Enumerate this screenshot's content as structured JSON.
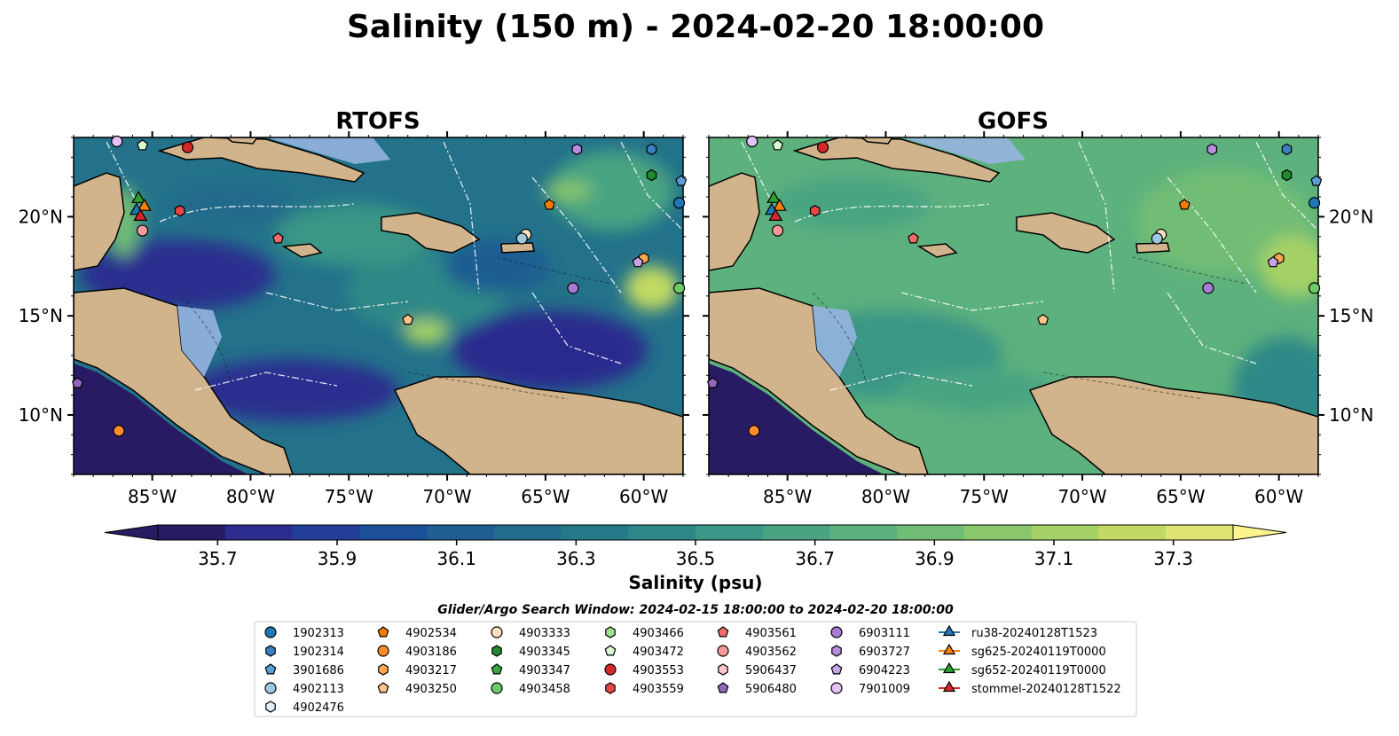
{
  "title": "Salinity (150 m) - 2024-02-20 18:00:00",
  "panels": [
    {
      "name": "RTOFS"
    },
    {
      "name": "GOFS"
    }
  ],
  "map_extent": {
    "lon": [
      -89,
      -58
    ],
    "lat": [
      7,
      24
    ]
  },
  "lon_ticks": [
    {
      "value": -85,
      "label": "85°W"
    },
    {
      "value": -80,
      "label": "80°W"
    },
    {
      "value": -75,
      "label": "75°W"
    },
    {
      "value": -70,
      "label": "70°W"
    },
    {
      "value": -65,
      "label": "65°W"
    },
    {
      "value": -60,
      "label": "60°W"
    }
  ],
  "lat_ticks": [
    {
      "value": 20,
      "label": "20°N"
    },
    {
      "value": 15,
      "label": "15°N"
    },
    {
      "value": 10,
      "label": "10°N"
    }
  ],
  "colorbar": {
    "label": "Salinity (psu)",
    "min": 35.6,
    "max": 37.4,
    "extend": "both",
    "colors": [
      "#291a64",
      "#2b2c8e",
      "#223e98",
      "#1c4f9a",
      "#1f5d92",
      "#216b8c",
      "#267989",
      "#2f8887",
      "#3a9686",
      "#4aa482",
      "#5cb17d",
      "#72bd75",
      "#8ac76c",
      "#a5d166",
      "#c2da63",
      "#dfe473"
    ],
    "ticks": [
      {
        "value": 35.7,
        "label": "35.7"
      },
      {
        "value": 35.9,
        "label": "35.9"
      },
      {
        "value": 36.1,
        "label": "36.1"
      },
      {
        "value": 36.3,
        "label": "36.3"
      },
      {
        "value": 36.5,
        "label": "36.5"
      },
      {
        "value": 36.7,
        "label": "36.7"
      },
      {
        "value": 36.9,
        "label": "36.9"
      },
      {
        "value": 37.1,
        "label": "37.1"
      },
      {
        "value": 37.3,
        "label": "37.3"
      }
    ]
  },
  "legend": {
    "title": "Glider/Argo Search Window: 2024-02-15 18:00:00 to 2024-02-20 18:00:00",
    "columns": [
      [
        {
          "label": "1902313",
          "marker": "circle",
          "color": "#1f77b4"
        },
        {
          "label": "1902314",
          "marker": "hexagon",
          "color": "#3a7fc0"
        },
        {
          "label": "3901686",
          "marker": "pentagon",
          "color": "#5b9fd8"
        },
        {
          "label": "4902113",
          "marker": "circle",
          "color": "#9ecae1"
        },
        {
          "label": "4902476",
          "marker": "hexagon",
          "color": "#e0f0ff"
        }
      ],
      [
        {
          "label": "4902534",
          "marker": "pentagon",
          "color": "#f57c00"
        },
        {
          "label": "4903186",
          "marker": "circle",
          "color": "#ff8c2a"
        },
        {
          "label": "4903217",
          "marker": "hexagon",
          "color": "#ffa94d"
        },
        {
          "label": "4903250",
          "marker": "pentagon",
          "color": "#ffc58a"
        }
      ],
      [
        {
          "label": "4903333",
          "marker": "circle",
          "color": "#ffe0c2"
        },
        {
          "label": "4903345",
          "marker": "hexagon",
          "color": "#218a2e"
        },
        {
          "label": "4903347",
          "marker": "pentagon",
          "color": "#3aa53f"
        },
        {
          "label": "4903458",
          "marker": "circle",
          "color": "#6dca6a"
        }
      ],
      [
        {
          "label": "4903466",
          "marker": "hexagon",
          "color": "#9be38d"
        },
        {
          "label": "4903472",
          "marker": "pentagon",
          "color": "#d8f7cf"
        },
        {
          "label": "4903553",
          "marker": "circle",
          "color": "#d62728"
        },
        {
          "label": "4903559",
          "marker": "hexagon",
          "color": "#e84545"
        }
      ],
      [
        {
          "label": "4903561",
          "marker": "pentagon",
          "color": "#f26b6b"
        },
        {
          "label": "4903562",
          "marker": "circle",
          "color": "#f59a9a"
        },
        {
          "label": "5906437",
          "marker": "hexagon",
          "color": "#fcc6c6"
        },
        {
          "label": "5906480",
          "marker": "pentagon",
          "color": "#9467bd"
        }
      ],
      [
        {
          "label": "6903111",
          "marker": "circle",
          "color": "#a87bd4"
        },
        {
          "label": "6903727",
          "marker": "hexagon",
          "color": "#b98de0"
        },
        {
          "label": "6904223",
          "marker": "pentagon",
          "color": "#c7a3e8"
        },
        {
          "label": "7901009",
          "marker": "circle",
          "color": "#e2c2f7"
        }
      ],
      [
        {
          "label": "ru38-20240128T1523",
          "marker": "triangle",
          "color": "#1f77b4"
        },
        {
          "label": "sg625-20240119T0000",
          "marker": "triangle",
          "color": "#ff7f0e"
        },
        {
          "label": "sg652-20240119T0000",
          "marker": "triangle",
          "color": "#2ca02c"
        },
        {
          "label": "stommel-20240128T1522",
          "marker": "triangle",
          "color": "#d62728"
        }
      ]
    ]
  },
  "argo_floats": [
    {
      "lon": -86.8,
      "lat": 23.8,
      "marker": "circle",
      "color": "#e2c2f7"
    },
    {
      "lon": -85.5,
      "lat": 23.6,
      "marker": "pentagon",
      "color": "#d8f7cf"
    },
    {
      "lon": -83.2,
      "lat": 23.5,
      "marker": "circle",
      "color": "#d62728"
    },
    {
      "lon": -63.4,
      "lat": 23.4,
      "marker": "hexagon",
      "color": "#b98de0"
    },
    {
      "lon": -59.6,
      "lat": 23.4,
      "marker": "hexagon",
      "color": "#3a7fc0"
    },
    {
      "lon": -59.6,
      "lat": 22.1,
      "marker": "hexagon",
      "color": "#218a2e"
    },
    {
      "lon": -58.1,
      "lat": 21.8,
      "marker": "pentagon",
      "color": "#5b9fd8"
    },
    {
      "lon": -58.2,
      "lat": 20.7,
      "marker": "circle",
      "color": "#1f77b4"
    },
    {
      "lon": -64.8,
      "lat": 20.6,
      "marker": "pentagon",
      "color": "#f57c00"
    },
    {
      "lon": -83.6,
      "lat": 20.3,
      "marker": "hexagon",
      "color": "#e84545"
    },
    {
      "lon": -85.5,
      "lat": 19.3,
      "marker": "circle",
      "color": "#f59a9a"
    },
    {
      "lon": -78.6,
      "lat": 18.9,
      "marker": "pentagon",
      "color": "#f26b6b"
    },
    {
      "lon": -66.0,
      "lat": 19.1,
      "marker": "circle",
      "color": "#ffe0c2"
    },
    {
      "lon": -66.2,
      "lat": 18.9,
      "marker": "circle",
      "color": "#9ecae1"
    },
    {
      "lon": -60.0,
      "lat": 17.9,
      "marker": "hexagon",
      "color": "#ffa94d"
    },
    {
      "lon": -60.3,
      "lat": 17.7,
      "marker": "pentagon",
      "color": "#c7a3e8"
    },
    {
      "lon": -63.6,
      "lat": 16.4,
      "marker": "circle",
      "color": "#a87bd4"
    },
    {
      "lon": -58.2,
      "lat": 16.4,
      "marker": "circle",
      "color": "#6dca6a"
    },
    {
      "lon": -72.0,
      "lat": 14.8,
      "marker": "pentagon",
      "color": "#ffc58a"
    },
    {
      "lon": -88.8,
      "lat": 11.6,
      "marker": "pentagon",
      "color": "#9467bd"
    },
    {
      "lon": -86.7,
      "lat": 9.2,
      "marker": "circle",
      "color": "#ff8c2a"
    }
  ],
  "gliders": [
    {
      "lon": -85.7,
      "lat": 20.9,
      "color": "#2ca02c"
    },
    {
      "lon": -85.4,
      "lat": 20.5,
      "color": "#ff7f0e"
    },
    {
      "lon": -85.8,
      "lat": 20.3,
      "color": "#1f77b4"
    },
    {
      "lon": -85.6,
      "lat": 20.0,
      "color": "#d62728"
    }
  ],
  "land_color": "#d2b48c",
  "shelf_color": "#96b4e0"
}
